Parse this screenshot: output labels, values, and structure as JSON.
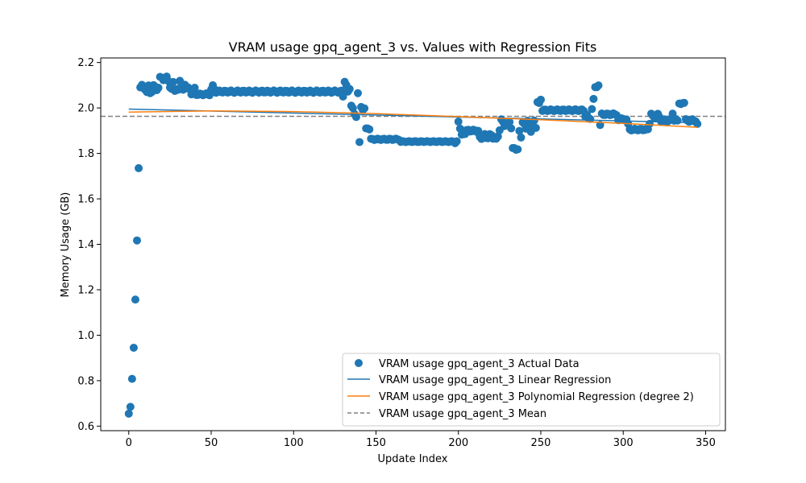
{
  "chart_data": {
    "type": "scatter",
    "title": "VRAM usage gpq_agent_3 vs. Values with Regression Fits",
    "xlabel": "Update Index",
    "ylabel": "Memory Usage (GB)",
    "xlim": [
      -17,
      362
    ],
    "ylim": [
      0.58,
      2.22
    ],
    "xticks": [
      0,
      50,
      100,
      150,
      200,
      250,
      300,
      350
    ],
    "yticks": [
      0.6,
      0.8,
      1.0,
      1.2,
      1.4,
      1.6,
      1.8,
      2.0,
      2.2
    ],
    "ytick_labels": [
      "0.6",
      "0.8",
      "1.0",
      "1.2",
      "1.4",
      "1.6",
      "1.8",
      "2.0",
      "2.2"
    ],
    "grid": false,
    "legend_position": "lower-right",
    "colors": {
      "actual": "#1f77b4",
      "linear": "#1f77b4",
      "poly": "#ff7f0e",
      "mean": "#808080"
    },
    "series": [
      {
        "name": "VRAM usage gpq_agent_3 Actual Data",
        "kind": "scatter",
        "segments": [
          {
            "x": [
              0,
              1,
              2,
              3,
              4,
              5,
              6
            ],
            "y": [
              0.655,
              0.685,
              0.808,
              0.945,
              1.157,
              1.417,
              1.735
            ]
          },
          {
            "x_start": 7,
            "x_end": 18,
            "base": 2.09,
            "amp": 0.012,
            "dips": [
              [
                11,
                2.07
              ],
              [
                13,
                2.065
              ],
              [
                14,
                2.07
              ]
            ]
          },
          {
            "x_start": 19,
            "x_end": 23,
            "base": 2.13,
            "amp": 0.008,
            "dips": []
          },
          {
            "x_start": 24,
            "x_end": 34,
            "base": 2.1,
            "amp": 0.02,
            "dips": [
              [
                28,
                2.075
              ],
              [
                30,
                2.08
              ]
            ]
          },
          {
            "x_start": 35,
            "x_end": 40,
            "base": 2.085,
            "amp": 0.006,
            "dips": [
              [
                38,
                2.06
              ],
              [
                39,
                2.065
              ]
            ]
          },
          {
            "x_start": 41,
            "x_end": 49,
            "base": 2.06,
            "amp": 0.004,
            "dips": []
          },
          {
            "x_start": 50,
            "x_end": 52,
            "base": 2.08,
            "amp": 0.015,
            "dips": [
              [
                51,
                2.1
              ]
            ]
          },
          {
            "x_start": 53,
            "x_end": 129,
            "base": 2.072,
            "amp": 0.005,
            "dips": []
          },
          {
            "x_start": 130,
            "x_end": 134,
            "base": 2.09,
            "amp": 0.02,
            "dips": [
              [
                131,
                2.115
              ],
              [
                130,
                2.05
              ]
            ]
          },
          {
            "x_start": 135,
            "x_end": 139,
            "base": 1.98,
            "amp": 0.02,
            "dips": [
              [
                135,
                2.01
              ],
              [
                138,
                1.96
              ],
              [
                139,
                2.065
              ]
            ]
          },
          {
            "x_start": 140,
            "x_end": 143,
            "base": 2.0,
            "amp": 0.01,
            "dips": [
              [
                140,
                1.85
              ]
            ]
          },
          {
            "x_start": 144,
            "x_end": 146,
            "base": 1.9,
            "amp": 0.012,
            "dips": [
              [
                144,
                1.91
              ]
            ]
          },
          {
            "x_start": 147,
            "x_end": 164,
            "base": 1.862,
            "amp": 0.003,
            "dips": []
          },
          {
            "x_start": 165,
            "x_end": 199,
            "base": 1.852,
            "amp": 0.002,
            "dips": [
              [
                198,
                1.845
              ]
            ]
          },
          {
            "x_start": 200,
            "x_end": 204,
            "base": 1.88,
            "amp": 0.03,
            "dips": [
              [
                200,
                1.94
              ],
              [
                203,
                1.9
              ]
            ]
          },
          {
            "x_start": 205,
            "x_end": 212,
            "base": 1.9,
            "amp": 0.005,
            "dips": []
          },
          {
            "x_start": 213,
            "x_end": 224,
            "base": 1.875,
            "amp": 0.012,
            "dips": [
              [
                221,
                1.865
              ],
              [
                223,
                1.865
              ]
            ]
          },
          {
            "x_start": 225,
            "x_end": 232,
            "base": 1.92,
            "amp": 0.02,
            "dips": [
              [
                226,
                1.95
              ],
              [
                229,
                1.93
              ]
            ]
          },
          {
            "x_start": 233,
            "x_end": 236,
            "base": 1.82,
            "amp": 0.005,
            "dips": []
          },
          {
            "x_start": 237,
            "x_end": 247,
            "base": 1.92,
            "amp": 0.025,
            "dips": [
              [
                238,
                1.87
              ],
              [
                240,
                1.93
              ]
            ]
          },
          {
            "x_start": 248,
            "x_end": 250,
            "base": 2.03,
            "amp": 0.01,
            "dips": []
          },
          {
            "x_start": 251,
            "x_end": 276,
            "base": 1.99,
            "amp": 0.004,
            "dips": []
          },
          {
            "x_start": 277,
            "x_end": 282,
            "base": 1.96,
            "amp": 0.01,
            "dips": [
              [
                281,
                1.995
              ],
              [
                282,
                2.04
              ]
            ]
          },
          {
            "x_start": 283,
            "x_end": 286,
            "base": 2.095,
            "amp": 0.005,
            "dips": [
              [
                286,
                1.925
              ]
            ]
          },
          {
            "x_start": 287,
            "x_end": 296,
            "base": 1.972,
            "amp": 0.004,
            "dips": []
          },
          {
            "x_start": 297,
            "x_end": 302,
            "base": 1.95,
            "amp": 0.005,
            "dips": []
          },
          {
            "x_start": 303,
            "x_end": 316,
            "base": 1.905,
            "amp": 0.004,
            "dips": [
              [
                303,
                1.93
              ],
              [
                316,
                1.93
              ]
            ]
          },
          {
            "x_start": 317,
            "x_end": 322,
            "base": 1.965,
            "amp": 0.01,
            "dips": []
          },
          {
            "x_start": 323,
            "x_end": 333,
            "base": 1.945,
            "amp": 0.006,
            "dips": [
              [
                330,
                1.975
              ]
            ]
          },
          {
            "x_start": 334,
            "x_end": 337,
            "base": 2.02,
            "amp": 0.003,
            "dips": []
          },
          {
            "x_start": 338,
            "x_end": 345,
            "base": 1.945,
            "amp": 0.006,
            "dips": [
              [
                345,
                1.93
              ]
            ]
          }
        ]
      },
      {
        "name": "VRAM usage gpq_agent_3 Linear Regression",
        "kind": "line",
        "x": [
          0,
          345
        ],
        "y": [
          1.995,
          1.935
        ]
      },
      {
        "name": "VRAM usage gpq_agent_3 Polynomial Regression (degree 2)",
        "kind": "line",
        "x": [
          0,
          50,
          100,
          150,
          200,
          250,
          300,
          345
        ],
        "y": [
          1.982,
          1.987,
          1.984,
          1.975,
          1.962,
          1.948,
          1.932,
          1.915
        ]
      },
      {
        "name": "VRAM usage gpq_agent_3 Mean",
        "kind": "hline",
        "y": 1.963
      }
    ]
  }
}
